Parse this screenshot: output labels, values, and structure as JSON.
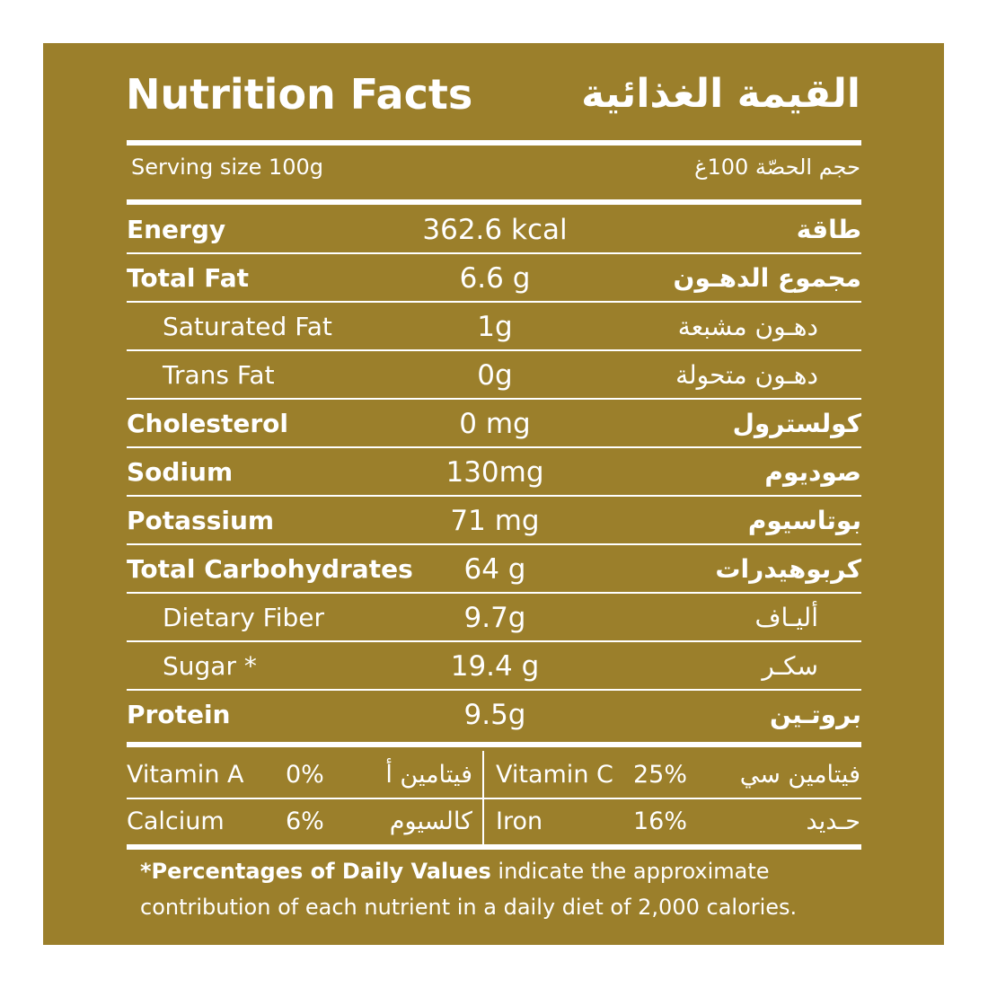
{
  "title": {
    "en": "Nutrition Facts",
    "ar": "القيمة الغذائية"
  },
  "serving": {
    "en": "Serving size 100g",
    "ar": "حجم الحصّة 100غ"
  },
  "rows": [
    {
      "en": "Energy",
      "value": "362.6 kcal",
      "ar": "طاقة"
    },
    {
      "en": "Total Fat",
      "value": "6.6 g",
      "ar": "مجموع الدهـون"
    },
    {
      "en": "Saturated Fat",
      "value": "1g",
      "ar": "دهـون مشبعة"
    },
    {
      "en": "Trans Fat",
      "value": "0g",
      "ar": "دهـون متحولة"
    },
    {
      "en": "Cholesterol",
      "value": "0 mg",
      "ar": "كولسترول"
    },
    {
      "en": "Sodium",
      "value": "130mg",
      "ar": "صوديوم"
    },
    {
      "en": "Potassium",
      "value": "71 mg",
      "ar": "بوتاسيوم"
    },
    {
      "en": "Total Carbohydrates",
      "value": "64 g",
      "ar": "كربوهيدرات"
    },
    {
      "en": "Dietary Fiber",
      "value": "9.7g",
      "ar": "أليـاف"
    },
    {
      "en": "Sugar *",
      "value": "19.4 g",
      "ar": "سكـر"
    },
    {
      "en": "Protein",
      "value": "9.5g",
      "ar": "بروتـين"
    }
  ],
  "vitamins": {
    "vitamin_a": {
      "en": "Vitamin A",
      "pct": "0%",
      "ar": "فيتامين أ"
    },
    "vitamin_c": {
      "en": "Vitamin C",
      "pct": "25%",
      "ar": "فيتامين سي"
    },
    "calcium": {
      "en": "Calcium",
      "pct": "6%",
      "ar": "كالسيوم"
    },
    "iron": {
      "en": "Iron",
      "pct": "16%",
      "ar": "حـديد"
    }
  },
  "footnote": {
    "bold": "*Percentages of Daily Values",
    "text": " indicate the approximate contribution of each nutrient in a daily diet of 2,000 calories."
  },
  "colors": {
    "background": "#9b7f2b",
    "text": "#ffffff"
  }
}
